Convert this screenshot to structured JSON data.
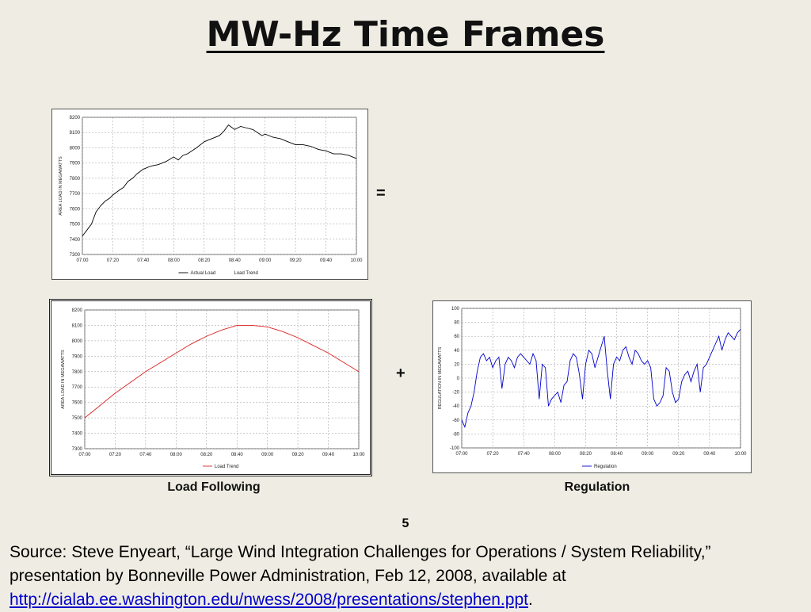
{
  "slide": {
    "title": "MW-Hz Time Frames",
    "equals": "=",
    "plus": "+",
    "page_number": "5",
    "source_text": "Source: Steve Enyeart, “Large Wind Integration Challenges for Operations / System Reliability,” presentation by Bonneville Power Administration, Feb 12, 2008, available at ",
    "source_link": "http://cialab.ee.washington.edu/nwess/2008/presentations/stephen.ppt",
    "source_end": "."
  },
  "captions": {
    "load_following": "Load Following",
    "regulation": "Regulation"
  },
  "chart_data": [
    {
      "type": "line",
      "ylabel": "AREA LOAD IN MEGAWATTS",
      "x_ticks": [
        "07:00",
        "07:20",
        "07:40",
        "08:00",
        "08:20",
        "08:40",
        "09:00",
        "09:20",
        "09:40",
        "10:00"
      ],
      "xlim": [
        0,
        180
      ],
      "ylim": [
        7300,
        8200
      ],
      "y_ticks": [
        7300,
        7400,
        7500,
        7600,
        7700,
        7800,
        7900,
        8000,
        8100,
        8200
      ],
      "grid": true,
      "legend": "bottom",
      "series": [
        {
          "name": "Actual Load",
          "color": "#000000",
          "x": [
            0,
            3,
            6,
            9,
            12,
            15,
            18,
            20,
            24,
            27,
            30,
            33,
            36,
            40,
            45,
            50,
            55,
            60,
            63,
            66,
            69,
            72,
            75,
            80,
            85,
            90,
            93,
            96,
            100,
            104,
            108,
            112,
            115,
            118,
            120,
            125,
            130,
            135,
            140,
            145,
            150,
            155,
            160,
            165,
            170,
            175,
            180
          ],
          "y": [
            7420,
            7460,
            7500,
            7580,
            7620,
            7650,
            7670,
            7690,
            7720,
            7740,
            7780,
            7800,
            7830,
            7860,
            7880,
            7890,
            7910,
            7940,
            7920,
            7950,
            7960,
            7980,
            8000,
            8040,
            8060,
            8080,
            8110,
            8150,
            8120,
            8140,
            8130,
            8120,
            8100,
            8080,
            8090,
            8070,
            8060,
            8040,
            8020,
            8020,
            8010,
            7990,
            7980,
            7960,
            7960,
            7950,
            7930
          ]
        }
      ],
      "legend_entries": [
        "Actual Load",
        "Load Trend"
      ]
    },
    {
      "type": "line",
      "ylabel": "AREA LOAD IN MEGAWATTS",
      "x_ticks": [
        "07:00",
        "07:20",
        "07:40",
        "08:00",
        "08:20",
        "08:40",
        "09:00",
        "09:20",
        "09:40",
        "10:00"
      ],
      "xlim": [
        0,
        180
      ],
      "ylim": [
        7300,
        8200
      ],
      "y_ticks": [
        7300,
        7400,
        7500,
        7600,
        7700,
        7800,
        7900,
        8000,
        8100,
        8200
      ],
      "grid": true,
      "legend": "bottom",
      "series": [
        {
          "name": "Load Trend",
          "color": "#dd2222",
          "x": [
            0,
            10,
            20,
            30,
            40,
            50,
            60,
            70,
            80,
            90,
            100,
            110,
            120,
            130,
            140,
            150,
            160,
            170,
            180
          ],
          "y": [
            7500,
            7580,
            7660,
            7730,
            7800,
            7860,
            7920,
            7980,
            8030,
            8070,
            8100,
            8100,
            8090,
            8060,
            8020,
            7970,
            7920,
            7860,
            7800
          ]
        }
      ],
      "legend_entries": [
        "Load Trend"
      ]
    },
    {
      "type": "line",
      "ylabel": "REGULATION IN MEGAWATTS",
      "x_ticks": [
        "07:00",
        "07:20",
        "07:40",
        "08:00",
        "08:20",
        "08:40",
        "09:00",
        "09:20",
        "09:40",
        "10:00"
      ],
      "xlim": [
        0,
        180
      ],
      "ylim": [
        -100,
        100
      ],
      "y_ticks": [
        -100,
        -80,
        -60,
        -40,
        -20,
        0,
        20,
        40,
        60,
        80,
        100
      ],
      "grid": true,
      "legend": "bottom",
      "series": [
        {
          "name": "Regulation",
          "color": "#0000cc",
          "x": [
            0,
            2,
            4,
            6,
            8,
            10,
            12,
            14,
            16,
            18,
            20,
            22,
            24,
            26,
            28,
            30,
            32,
            34,
            36,
            38,
            40,
            42,
            44,
            46,
            48,
            50,
            52,
            54,
            56,
            58,
            60,
            62,
            64,
            66,
            68,
            70,
            72,
            74,
            76,
            78,
            80,
            82,
            84,
            86,
            88,
            90,
            92,
            94,
            96,
            98,
            100,
            102,
            104,
            106,
            108,
            110,
            112,
            114,
            116,
            118,
            120,
            122,
            124,
            126,
            128,
            130,
            132,
            134,
            136,
            138,
            140,
            142,
            144,
            146,
            148,
            150,
            152,
            154,
            156,
            158,
            160,
            162,
            164,
            166,
            168,
            170,
            172,
            174,
            176,
            178,
            180
          ],
          "y": [
            -60,
            -70,
            -50,
            -40,
            -20,
            10,
            30,
            35,
            25,
            30,
            15,
            25,
            30,
            -15,
            20,
            30,
            25,
            15,
            30,
            35,
            30,
            25,
            20,
            35,
            25,
            -30,
            20,
            15,
            -40,
            -30,
            -25,
            -20,
            -35,
            -10,
            -5,
            25,
            35,
            30,
            5,
            -30,
            20,
            40,
            35,
            15,
            30,
            45,
            60,
            10,
            -30,
            20,
            30,
            25,
            40,
            45,
            30,
            20,
            40,
            35,
            25,
            20,
            25,
            15,
            -30,
            -40,
            -35,
            -25,
            15,
            10,
            -20,
            -35,
            -30,
            -5,
            5,
            10,
            -5,
            10,
            20,
            -20,
            15,
            20,
            30,
            40,
            50,
            60,
            40,
            55,
            65,
            60,
            55,
            65,
            70
          ]
        }
      ],
      "legend_entries": [
        "Regulation"
      ]
    }
  ]
}
